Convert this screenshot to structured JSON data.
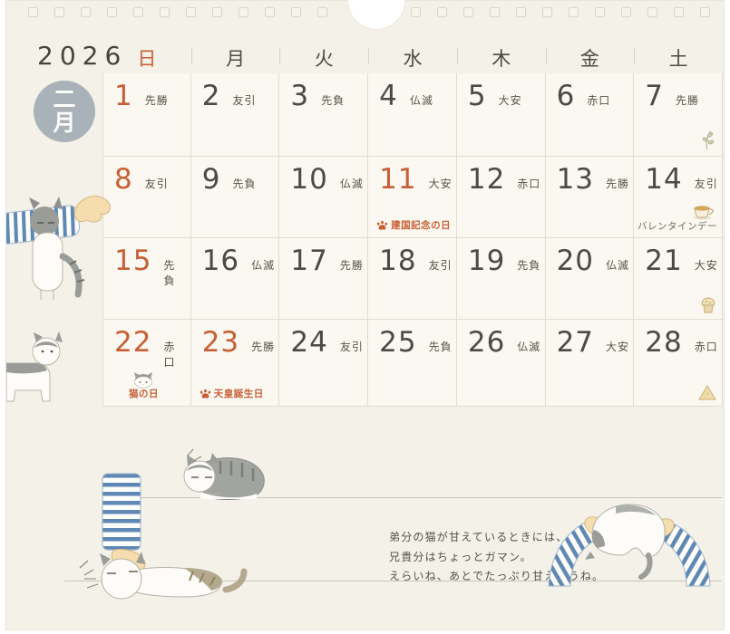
{
  "page": {
    "year": "2026",
    "month_badge_chars": [
      "二",
      "月"
    ],
    "weekdays": [
      {
        "label": "日",
        "accent": true
      },
      {
        "label": "月"
      },
      {
        "label": "火"
      },
      {
        "label": "水"
      },
      {
        "label": "木"
      },
      {
        "label": "金"
      },
      {
        "label": "土"
      }
    ],
    "weeks": [
      [
        {
          "day": "1",
          "rokuyo": "先勝",
          "accent": true
        },
        {
          "day": "2",
          "rokuyo": "友引"
        },
        {
          "day": "3",
          "rokuyo": "先負"
        },
        {
          "day": "4",
          "rokuyo": "仏滅"
        },
        {
          "day": "5",
          "rokuyo": "大安"
        },
        {
          "day": "6",
          "rokuyo": "赤口"
        },
        {
          "day": "7",
          "rokuyo": "先勝",
          "icon": "sprig"
        }
      ],
      [
        {
          "day": "8",
          "rokuyo": "友引",
          "accent": true
        },
        {
          "day": "9",
          "rokuyo": "先負"
        },
        {
          "day": "10",
          "rokuyo": "仏滅"
        },
        {
          "day": "11",
          "rokuyo": "大安",
          "accent": true,
          "holiday": "建国記念の日",
          "paw": true
        },
        {
          "day": "12",
          "rokuyo": "赤口"
        },
        {
          "day": "13",
          "rokuyo": "先勝"
        },
        {
          "day": "14",
          "rokuyo": "友引",
          "holiday": "バレンタインデー",
          "plain": true,
          "icon": "teacup"
        }
      ],
      [
        {
          "day": "15",
          "rokuyo": "先負",
          "accent": true
        },
        {
          "day": "16",
          "rokuyo": "仏滅"
        },
        {
          "day": "17",
          "rokuyo": "先勝"
        },
        {
          "day": "18",
          "rokuyo": "友引"
        },
        {
          "day": "19",
          "rokuyo": "先負"
        },
        {
          "day": "20",
          "rokuyo": "仏滅"
        },
        {
          "day": "21",
          "rokuyo": "大安",
          "icon": "muffin"
        }
      ],
      [
        {
          "day": "22",
          "rokuyo": "赤口",
          "accent": true,
          "holiday": "猫の日",
          "icon": "catface"
        },
        {
          "day": "23",
          "rokuyo": "先勝",
          "accent": true,
          "holiday": "天皇誕生日",
          "paw": true
        },
        {
          "day": "24",
          "rokuyo": "友引"
        },
        {
          "day": "25",
          "rokuyo": "先負"
        },
        {
          "day": "26",
          "rokuyo": "仏滅"
        },
        {
          "day": "27",
          "rokuyo": "大安"
        },
        {
          "day": "28",
          "rokuyo": "赤口",
          "icon": "cheese"
        }
      ]
    ],
    "note_lines": [
      "弟分の猫が甘えているときには、",
      "兄貴分はちょっとガマン。",
      "えらいね、あとでたっぷり甘えようね。"
    ],
    "colors": {
      "accent": "#c75f36",
      "ink": "#4b4a46",
      "paper": "#f4f1e8",
      "badge": "#a9b2b9",
      "stripe_blue": "#5f88b4",
      "shelf_line": "#c9c5b8"
    }
  }
}
